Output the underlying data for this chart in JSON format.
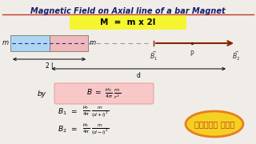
{
  "bg_color": "#f0ede8",
  "title": "Magnetic Field on Axial line of a bar Magnet",
  "title_color": "#1a1a6e",
  "title_underline_color": "#c0392b",
  "formula_M": "M  =  m x 2l",
  "formula_M_bg": "#f5f530",
  "magnet_left_color": "#aed6f1",
  "magnet_right_color": "#f1b8b8",
  "formula_B_bg": "#f8c8c8",
  "hindi_bg": "#f5d020",
  "hindi_text": "हिंदी में",
  "hindi_border": "#e67e22",
  "arrow_color": "#8B2000"
}
